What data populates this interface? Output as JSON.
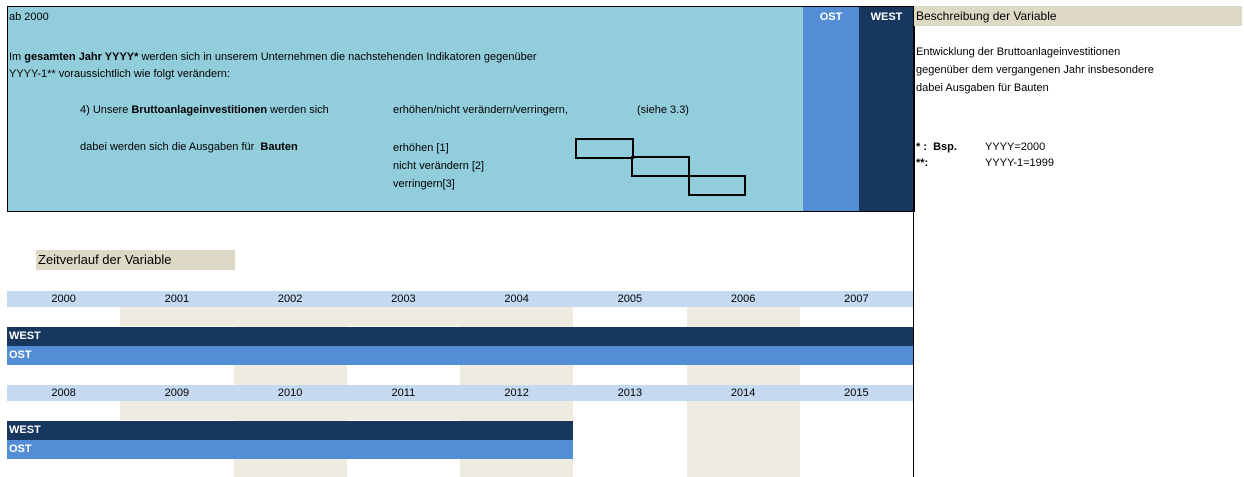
{
  "header": {
    "left": "ab 2000",
    "ost": "OST",
    "west": "WEST"
  },
  "question": {
    "line1": [
      "Im ",
      "gesamten Jahr YYYY*",
      " werden sich in unserem Unternehmen die nachstehenden Indikatoren gegenüber"
    ],
    "line2": "YYYY-1** voraussichtlich wie folgt verändern:",
    "item": [
      "4) Unsere ",
      "Bruttoanlageinvestitionen",
      " werden sich"
    ],
    "options_text": "erhöhen/nicht verändern/verringern,",
    "ref": "(siehe 3.3)",
    "sub": [
      "dabei werden sich die Ausgaben für  ",
      "Bauten"
    ],
    "answers": [
      "erhöhen [1]",
      "nicht verändern [2]",
      "verringern[3]"
    ]
  },
  "description": {
    "title": "Beschreibung der Variable",
    "lines": [
      "Entwicklung der Bruttoanlageinvestitionen",
      "gegenüber dem vergangenen Jahr insbesondere",
      "dabei Ausgaben für Bauten"
    ],
    "notes": [
      [
        "* :  Bsp.",
        "YYYY=2000"
      ],
      [
        "**:",
        "YYYY-1=1999"
      ]
    ]
  },
  "timeline": {
    "title": "Zeitverlauf der Variable",
    "blocks": [
      {
        "years": [
          2000,
          2001,
          2002,
          2003,
          2004,
          2005,
          2006,
          2007
        ],
        "rows": [
          "WEST",
          "OST"
        ]
      },
      {
        "years": [
          2008,
          2009,
          2010,
          2011,
          2012,
          2013,
          2014,
          2015
        ],
        "rows": [
          "WEST",
          "OST"
        ]
      }
    ]
  }
}
